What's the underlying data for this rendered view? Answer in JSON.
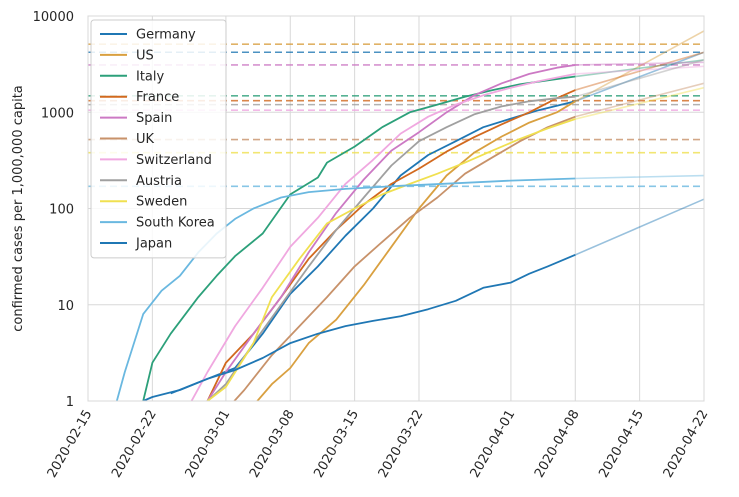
{
  "chart_data": {
    "type": "line",
    "title": "",
    "xlabel": "",
    "ylabel": "confirmed cases per 1,000,000 capita",
    "yscale": "log",
    "ylim": [
      1,
      10000
    ],
    "yticks": [
      1,
      10,
      100,
      1000,
      10000
    ],
    "ytick_labels": [
      "1",
      "10",
      "100",
      "1000",
      "10000"
    ],
    "xlim": [
      "2020-02-15",
      "2020-04-22"
    ],
    "xticks": [
      "2020-02-15",
      "2020-02-22",
      "2020-03-01",
      "2020-03-08",
      "2020-03-15",
      "2020-03-22",
      "2020-04-01",
      "2020-04-08",
      "2020-04-15",
      "2020-04-22"
    ],
    "grid": true,
    "legend_position": "top-left",
    "series": [
      {
        "name": "Germany",
        "color": "#1f77b4",
        "plateau": 4200,
        "extrapolation_end": 4200,
        "points": [
          [
            "2020-02-24",
            1.2
          ],
          [
            "2020-02-28",
            1.7
          ],
          [
            "2020-03-02",
            2.2
          ],
          [
            "2020-03-05",
            5
          ],
          [
            "2020-03-08",
            13
          ],
          [
            "2020-03-11",
            25
          ],
          [
            "2020-03-14",
            52
          ],
          [
            "2020-03-17",
            100
          ],
          [
            "2020-03-20",
            220
          ],
          [
            "2020-03-23",
            360
          ],
          [
            "2020-03-26",
            500
          ],
          [
            "2020-03-29",
            700
          ],
          [
            "2020-04-01",
            860
          ],
          [
            "2020-04-04",
            1050
          ],
          [
            "2020-04-08",
            1300
          ]
        ]
      },
      {
        "name": "US",
        "color": "#d9a040",
        "plateau": 5100,
        "extrapolation_end": 7000,
        "points": [
          [
            "2020-03-04",
            0.9
          ],
          [
            "2020-03-06",
            1.5
          ],
          [
            "2020-03-08",
            2.2
          ],
          [
            "2020-03-10",
            4
          ],
          [
            "2020-03-13",
            7
          ],
          [
            "2020-03-16",
            16
          ],
          [
            "2020-03-19",
            40
          ],
          [
            "2020-03-22",
            100
          ],
          [
            "2020-03-25",
            220
          ],
          [
            "2020-03-28",
            380
          ],
          [
            "2020-03-31",
            560
          ],
          [
            "2020-04-03",
            780
          ],
          [
            "2020-04-06",
            1000
          ],
          [
            "2020-04-08",
            1300
          ]
        ]
      },
      {
        "name": "Italy",
        "color": "#2ca07a",
        "plateau": 1480,
        "extrapolation_end": 3500,
        "points": [
          [
            "2020-02-21",
            1
          ],
          [
            "2020-02-22",
            2.5
          ],
          [
            "2020-02-24",
            5
          ],
          [
            "2020-02-27",
            12
          ],
          [
            "2020-02-29",
            20
          ],
          [
            "2020-03-02",
            32
          ],
          [
            "2020-03-05",
            55
          ],
          [
            "2020-03-08",
            140
          ],
          [
            "2020-03-11",
            210
          ],
          [
            "2020-03-12",
            300
          ],
          [
            "2020-03-15",
            440
          ],
          [
            "2020-03-18",
            700
          ],
          [
            "2020-03-21",
            1000
          ],
          [
            "2020-03-24",
            1200
          ],
          [
            "2020-03-27",
            1450
          ],
          [
            "2020-03-30",
            1700
          ],
          [
            "2020-04-02",
            1950
          ],
          [
            "2020-04-05",
            2150
          ],
          [
            "2020-04-08",
            2350
          ]
        ]
      },
      {
        "name": "France",
        "color": "#d2691e",
        "plateau": 1320,
        "extrapolation_end": 4200,
        "points": [
          [
            "2020-02-28",
            1
          ],
          [
            "2020-03-01",
            2.5
          ],
          [
            "2020-03-04",
            5
          ],
          [
            "2020-03-07",
            12
          ],
          [
            "2020-03-10",
            30
          ],
          [
            "2020-03-13",
            60
          ],
          [
            "2020-03-16",
            110
          ],
          [
            "2020-03-19",
            180
          ],
          [
            "2020-03-22",
            260
          ],
          [
            "2020-03-25",
            390
          ],
          [
            "2020-03-28",
            550
          ],
          [
            "2020-03-31",
            750
          ],
          [
            "2020-04-03",
            1000
          ],
          [
            "2020-04-06",
            1400
          ],
          [
            "2020-04-08",
            1700
          ]
        ]
      },
      {
        "name": "Spain",
        "color": "#cc79c4",
        "plateau": 3100,
        "extrapolation_end": 3300,
        "points": [
          [
            "2020-02-28",
            1
          ],
          [
            "2020-03-01",
            2
          ],
          [
            "2020-03-04",
            5
          ],
          [
            "2020-03-07",
            12
          ],
          [
            "2020-03-10",
            35
          ],
          [
            "2020-03-13",
            90
          ],
          [
            "2020-03-16",
            200
          ],
          [
            "2020-03-19",
            400
          ],
          [
            "2020-03-22",
            620
          ],
          [
            "2020-03-25",
            1000
          ],
          [
            "2020-03-28",
            1500
          ],
          [
            "2020-03-31",
            2000
          ],
          [
            "2020-04-03",
            2500
          ],
          [
            "2020-04-06",
            2900
          ],
          [
            "2020-04-08",
            3100
          ]
        ]
      },
      {
        "name": "UK",
        "color": "#c8926a",
        "plateau": 520,
        "extrapolation_end": 2000,
        "points": [
          [
            "2020-03-01",
            0.8
          ],
          [
            "2020-03-03",
            1.3
          ],
          [
            "2020-03-06",
            3
          ],
          [
            "2020-03-09",
            6
          ],
          [
            "2020-03-12",
            12
          ],
          [
            "2020-03-15",
            25
          ],
          [
            "2020-03-18",
            45
          ],
          [
            "2020-03-21",
            80
          ],
          [
            "2020-03-24",
            130
          ],
          [
            "2020-03-27",
            230
          ],
          [
            "2020-03-30",
            340
          ],
          [
            "2020-04-02",
            500
          ],
          [
            "2020-04-05",
            700
          ],
          [
            "2020-04-08",
            900
          ]
        ]
      },
      {
        "name": "Switzerland",
        "color": "#f0a8e0",
        "plateau": 1050,
        "extrapolation_end": 3000,
        "points": [
          [
            "2020-02-26",
            0.9
          ],
          [
            "2020-02-28",
            2
          ],
          [
            "2020-03-02",
            6
          ],
          [
            "2020-03-05",
            15
          ],
          [
            "2020-03-08",
            40
          ],
          [
            "2020-03-11",
            80
          ],
          [
            "2020-03-14",
            180
          ],
          [
            "2020-03-17",
            320
          ],
          [
            "2020-03-20",
            600
          ],
          [
            "2020-03-23",
            900
          ],
          [
            "2020-03-26",
            1200
          ],
          [
            "2020-03-29",
            1500
          ],
          [
            "2020-04-01",
            1800
          ],
          [
            "2020-04-04",
            2100
          ],
          [
            "2020-04-08",
            2500
          ]
        ]
      },
      {
        "name": "Austria",
        "color": "#a0a0a0",
        "plateau": 1200,
        "extrapolation_end": 3500,
        "points": [
          [
            "2020-02-28",
            1
          ],
          [
            "2020-03-01",
            1.5
          ],
          [
            "2020-03-04",
            4
          ],
          [
            "2020-03-07",
            10
          ],
          [
            "2020-03-10",
            25
          ],
          [
            "2020-03-13",
            60
          ],
          [
            "2020-03-16",
            130
          ],
          [
            "2020-03-19",
            280
          ],
          [
            "2020-03-22",
            500
          ],
          [
            "2020-03-25",
            700
          ],
          [
            "2020-03-28",
            950
          ],
          [
            "2020-03-31",
            1150
          ],
          [
            "2020-04-03",
            1300
          ],
          [
            "2020-04-06",
            1400
          ],
          [
            "2020-04-08",
            1450
          ]
        ]
      },
      {
        "name": "Sweden",
        "color": "#f0e050",
        "plateau": 380,
        "extrapolation_end": 1800,
        "points": [
          [
            "2020-02-28",
            1
          ],
          [
            "2020-03-01",
            1.4
          ],
          [
            "2020-03-04",
            4
          ],
          [
            "2020-03-06",
            12
          ],
          [
            "2020-03-09",
            30
          ],
          [
            "2020-03-12",
            70
          ],
          [
            "2020-03-15",
            100
          ],
          [
            "2020-03-18",
            140
          ],
          [
            "2020-03-21",
            180
          ],
          [
            "2020-03-24",
            230
          ],
          [
            "2020-03-27",
            300
          ],
          [
            "2020-03-30",
            400
          ],
          [
            "2020-04-02",
            530
          ],
          [
            "2020-04-05",
            680
          ],
          [
            "2020-04-08",
            850
          ]
        ]
      },
      {
        "name": "South Korea",
        "color": "#6ab8e0",
        "plateau": 170,
        "extrapolation_end": 220,
        "points": [
          [
            "2020-02-18",
            0.9
          ],
          [
            "2020-02-19",
            2
          ],
          [
            "2020-02-21",
            8
          ],
          [
            "2020-02-23",
            14
          ],
          [
            "2020-02-25",
            20
          ],
          [
            "2020-02-27",
            35
          ],
          [
            "2020-02-29",
            55
          ],
          [
            "2020-03-02",
            78
          ],
          [
            "2020-03-04",
            100
          ],
          [
            "2020-03-07",
            130
          ],
          [
            "2020-03-10",
            148
          ],
          [
            "2020-03-14",
            160
          ],
          [
            "2020-03-20",
            172
          ],
          [
            "2020-03-27",
            185
          ],
          [
            "2020-04-01",
            195
          ],
          [
            "2020-04-08",
            205
          ]
        ]
      },
      {
        "name": "Japan",
        "color": "#1f77b4",
        "plateau": 0,
        "extrapolation_end": 125,
        "points": [
          [
            "2020-02-21",
            1
          ],
          [
            "2020-02-22",
            1.1
          ],
          [
            "2020-02-25",
            1.3
          ],
          [
            "2020-02-28",
            1.7
          ],
          [
            "2020-03-02",
            2.1
          ],
          [
            "2020-03-05",
            2.8
          ],
          [
            "2020-03-08",
            4
          ],
          [
            "2020-03-11",
            5
          ],
          [
            "2020-03-14",
            6
          ],
          [
            "2020-03-17",
            6.8
          ],
          [
            "2020-03-20",
            7.6
          ],
          [
            "2020-03-23",
            9
          ],
          [
            "2020-03-26",
            11
          ],
          [
            "2020-03-29",
            15
          ],
          [
            "2020-04-01",
            17
          ],
          [
            "2020-04-03",
            21
          ],
          [
            "2020-04-05",
            25
          ],
          [
            "2020-04-08",
            33
          ]
        ]
      }
    ]
  }
}
